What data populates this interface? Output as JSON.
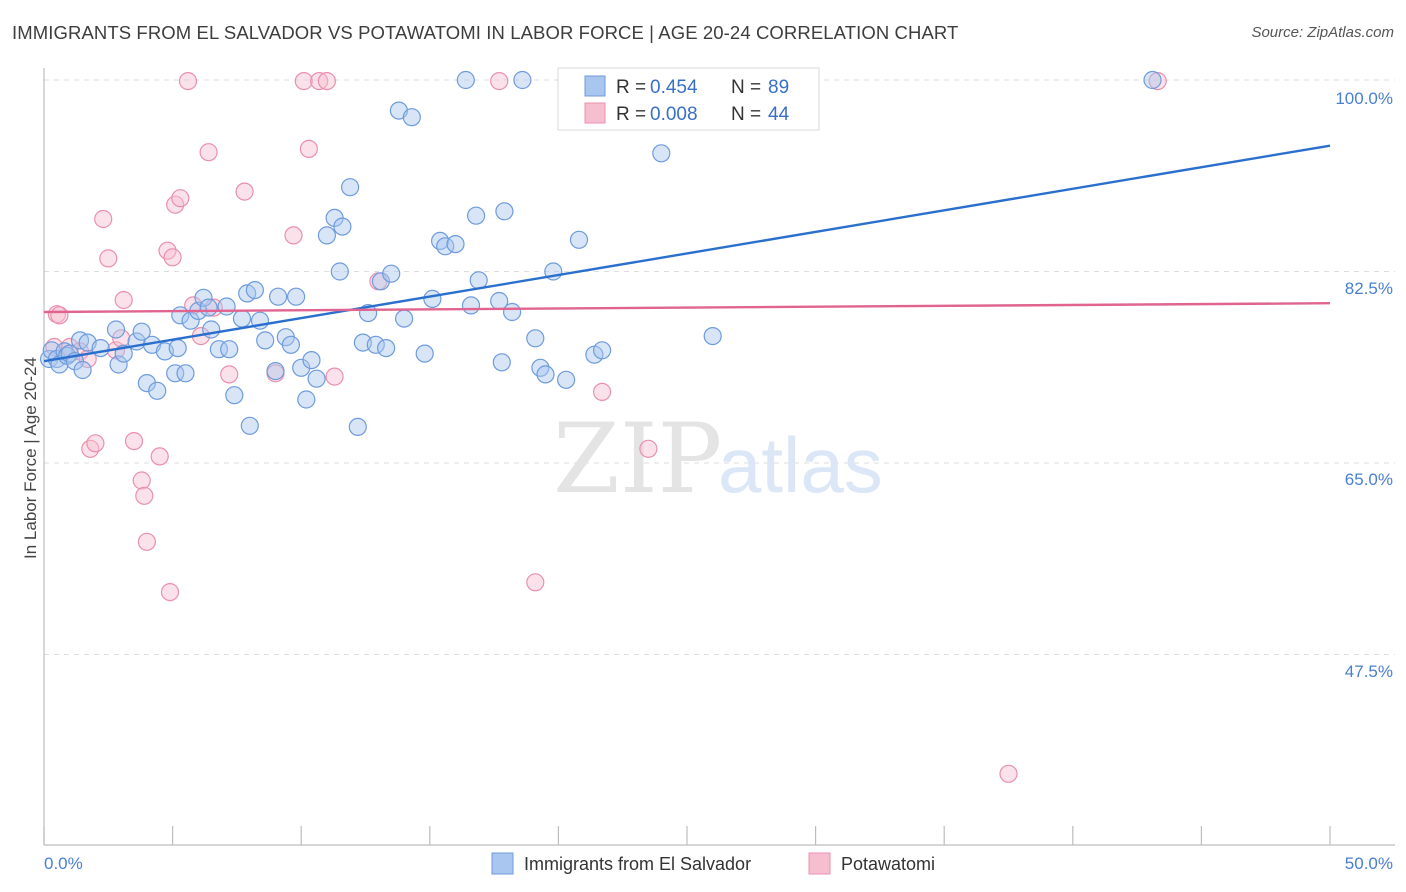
{
  "title": "IMMIGRANTS FROM EL SALVADOR VS POTAWATOMI IN LABOR FORCE | AGE 20-24 CORRELATION CHART",
  "source": "Source: ZipAtlas.com",
  "watermark": {
    "zip": "ZIP",
    "atlas": "atlas"
  },
  "colors": {
    "blue_fill": "#a9c6ee",
    "blue_stroke": "#6e9bdc",
    "blue_line": "#2b6fce",
    "pink_fill": "#f6bfd0",
    "pink_stroke": "#e990ae",
    "pink_line": "#e0648f",
    "tick_text": "#4a7fd0",
    "grid": "#dddddd"
  },
  "legend": {
    "rows": [
      {
        "r_label": "R =",
        "r_value": "0.454",
        "n_label": "N =",
        "n_value": "89"
      },
      {
        "r_label": "R =",
        "r_value": "0.008",
        "n_label": "N =",
        "n_value": "44"
      }
    ]
  },
  "chart_data": {
    "type": "scatter",
    "title": "IMMIGRANTS FROM EL SALVADOR VS POTAWATOMI IN LABOR FORCE | AGE 20-24 CORRELATION CHART",
    "xlabel": "",
    "ylabel": "In Labor Force | Age 20-24",
    "xlim": [
      0,
      50
    ],
    "ylim": [
      32,
      102
    ],
    "x_tick_labels": [
      "0.0%",
      "50.0%"
    ],
    "y_ticks": [
      47.5,
      65.0,
      82.5,
      100.0
    ],
    "y_tick_labels": [
      "47.5%",
      "65.0%",
      "82.5%",
      "100.0%"
    ],
    "grid": true,
    "legend_position": "top-center",
    "series": [
      {
        "name": "Immigrants from El Salvador",
        "color": "#a9c6ee",
        "trend": {
          "x": [
            0,
            50
          ],
          "y": [
            74.3,
            94.0
          ]
        },
        "points": [
          [
            0.2,
            74.5
          ],
          [
            0.3,
            75.3
          ],
          [
            0.5,
            74.5
          ],
          [
            0.6,
            74.0
          ],
          [
            0.8,
            75.2
          ],
          [
            0.9,
            74.8
          ],
          [
            1.0,
            75.0
          ],
          [
            1.2,
            74.3
          ],
          [
            1.4,
            76.2
          ],
          [
            1.5,
            73.5
          ],
          [
            1.7,
            76.0
          ],
          [
            2.2,
            75.5
          ],
          [
            2.8,
            77.2
          ],
          [
            2.9,
            74.0
          ],
          [
            3.1,
            75.0
          ],
          [
            3.6,
            76.1
          ],
          [
            3.8,
            77.0
          ],
          [
            4.0,
            72.3
          ],
          [
            4.2,
            75.8
          ],
          [
            4.4,
            71.6
          ],
          [
            4.7,
            75.2
          ],
          [
            5.1,
            73.2
          ],
          [
            5.2,
            75.5
          ],
          [
            5.3,
            78.5
          ],
          [
            5.5,
            73.2
          ],
          [
            5.7,
            78.0
          ],
          [
            6.0,
            78.9
          ],
          [
            6.2,
            80.1
          ],
          [
            6.4,
            79.2
          ],
          [
            6.5,
            77.2
          ],
          [
            6.8,
            75.4
          ],
          [
            7.1,
            79.3
          ],
          [
            7.2,
            75.4
          ],
          [
            7.4,
            71.2
          ],
          [
            7.7,
            78.2
          ],
          [
            7.9,
            80.5
          ],
          [
            8.0,
            68.4
          ],
          [
            8.2,
            80.8
          ],
          [
            8.4,
            78.0
          ],
          [
            8.6,
            76.2
          ],
          [
            9.0,
            73.4
          ],
          [
            9.1,
            80.2
          ],
          [
            9.4,
            76.5
          ],
          [
            9.6,
            75.8
          ],
          [
            9.8,
            80.2
          ],
          [
            10.0,
            73.7
          ],
          [
            10.2,
            70.8
          ],
          [
            10.4,
            74.4
          ],
          [
            10.6,
            72.7
          ],
          [
            11.0,
            85.8
          ],
          [
            11.3,
            87.4
          ],
          [
            11.5,
            82.5
          ],
          [
            11.6,
            86.6
          ],
          [
            11.9,
            90.2
          ],
          [
            12.2,
            68.3
          ],
          [
            12.4,
            76.0
          ],
          [
            12.6,
            78.7
          ],
          [
            12.9,
            75.8
          ],
          [
            13.1,
            81.6
          ],
          [
            13.3,
            75.5
          ],
          [
            13.5,
            82.3
          ],
          [
            13.8,
            97.2
          ],
          [
            14.0,
            78.2
          ],
          [
            14.3,
            96.6
          ],
          [
            14.8,
            75.0
          ],
          [
            15.1,
            80.0
          ],
          [
            15.4,
            85.3
          ],
          [
            15.6,
            84.8
          ],
          [
            16.0,
            85.0
          ],
          [
            16.4,
            100.0
          ],
          [
            16.6,
            79.4
          ],
          [
            16.8,
            87.6
          ],
          [
            16.9,
            81.7
          ],
          [
            17.7,
            79.8
          ],
          [
            17.8,
            74.2
          ],
          [
            17.9,
            88.0
          ],
          [
            18.2,
            78.8
          ],
          [
            18.6,
            100.0
          ],
          [
            19.1,
            76.4
          ],
          [
            19.3,
            73.7
          ],
          [
            19.5,
            73.1
          ],
          [
            19.8,
            82.5
          ],
          [
            20.3,
            72.6
          ],
          [
            20.8,
            85.4
          ],
          [
            21.4,
            74.9
          ],
          [
            21.7,
            75.3
          ],
          [
            24.0,
            93.3
          ],
          [
            26.0,
            76.6
          ],
          [
            43.1,
            100.0
          ]
        ]
      },
      {
        "name": "Potawatomi",
        "color": "#f6bfd0",
        "trend": {
          "x": [
            0,
            50
          ],
          "y": [
            78.8,
            79.6
          ]
        },
        "points": [
          [
            0.4,
            75.6
          ],
          [
            0.5,
            78.6
          ],
          [
            0.6,
            78.5
          ],
          [
            1.0,
            75.6
          ],
          [
            1.4,
            75.2
          ],
          [
            1.7,
            74.5
          ],
          [
            1.8,
            66.3
          ],
          [
            2.0,
            66.8
          ],
          [
            2.3,
            87.3
          ],
          [
            2.5,
            83.7
          ],
          [
            2.8,
            75.3
          ],
          [
            3.0,
            76.4
          ],
          [
            3.1,
            79.9
          ],
          [
            3.5,
            67.0
          ],
          [
            3.8,
            63.4
          ],
          [
            3.9,
            62.0
          ],
          [
            4.0,
            57.8
          ],
          [
            4.5,
            65.6
          ],
          [
            4.8,
            84.4
          ],
          [
            4.9,
            53.2
          ],
          [
            5.0,
            83.8
          ],
          [
            5.1,
            88.6
          ],
          [
            5.3,
            89.2
          ],
          [
            5.6,
            99.9
          ],
          [
            5.8,
            79.4
          ],
          [
            6.1,
            76.6
          ],
          [
            6.4,
            93.4
          ],
          [
            6.6,
            79.2
          ],
          [
            7.2,
            73.1
          ],
          [
            7.8,
            89.8
          ],
          [
            9.0,
            73.2
          ],
          [
            9.7,
            85.8
          ],
          [
            10.1,
            99.9
          ],
          [
            10.3,
            93.7
          ],
          [
            10.7,
            99.9
          ],
          [
            11.0,
            99.9
          ],
          [
            11.3,
            72.9
          ],
          [
            13.0,
            81.6
          ],
          [
            17.7,
            99.9
          ],
          [
            19.1,
            54.1
          ],
          [
            21.7,
            71.5
          ],
          [
            23.5,
            66.3
          ],
          [
            37.5,
            36.6
          ],
          [
            43.3,
            99.9
          ]
        ]
      }
    ]
  }
}
